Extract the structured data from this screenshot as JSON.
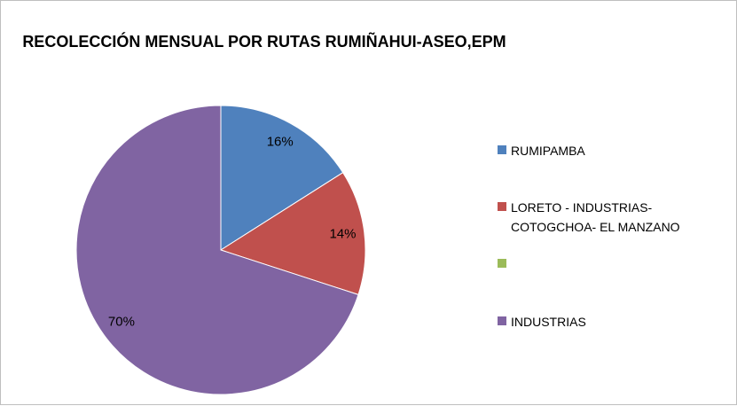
{
  "chart_data": {
    "type": "pie",
    "title": "RECOLECCIÓN MENSUAL POR RUTAS RUMIÑAHUI-ASEO,EPM",
    "categories": [
      "RUMIPAMBA",
      "LORETO - INDUSTRIAS-COTOGCHOA- EL MANZANO",
      null,
      "INDUSTRIAS"
    ],
    "values": [
      16,
      14,
      0,
      70
    ],
    "value_labels": [
      "16%",
      "14%",
      null,
      "70%"
    ],
    "colors": [
      "#4f81bd",
      "#c0504d",
      "#9bbb59",
      "#8064a2"
    ],
    "legend": "right"
  }
}
